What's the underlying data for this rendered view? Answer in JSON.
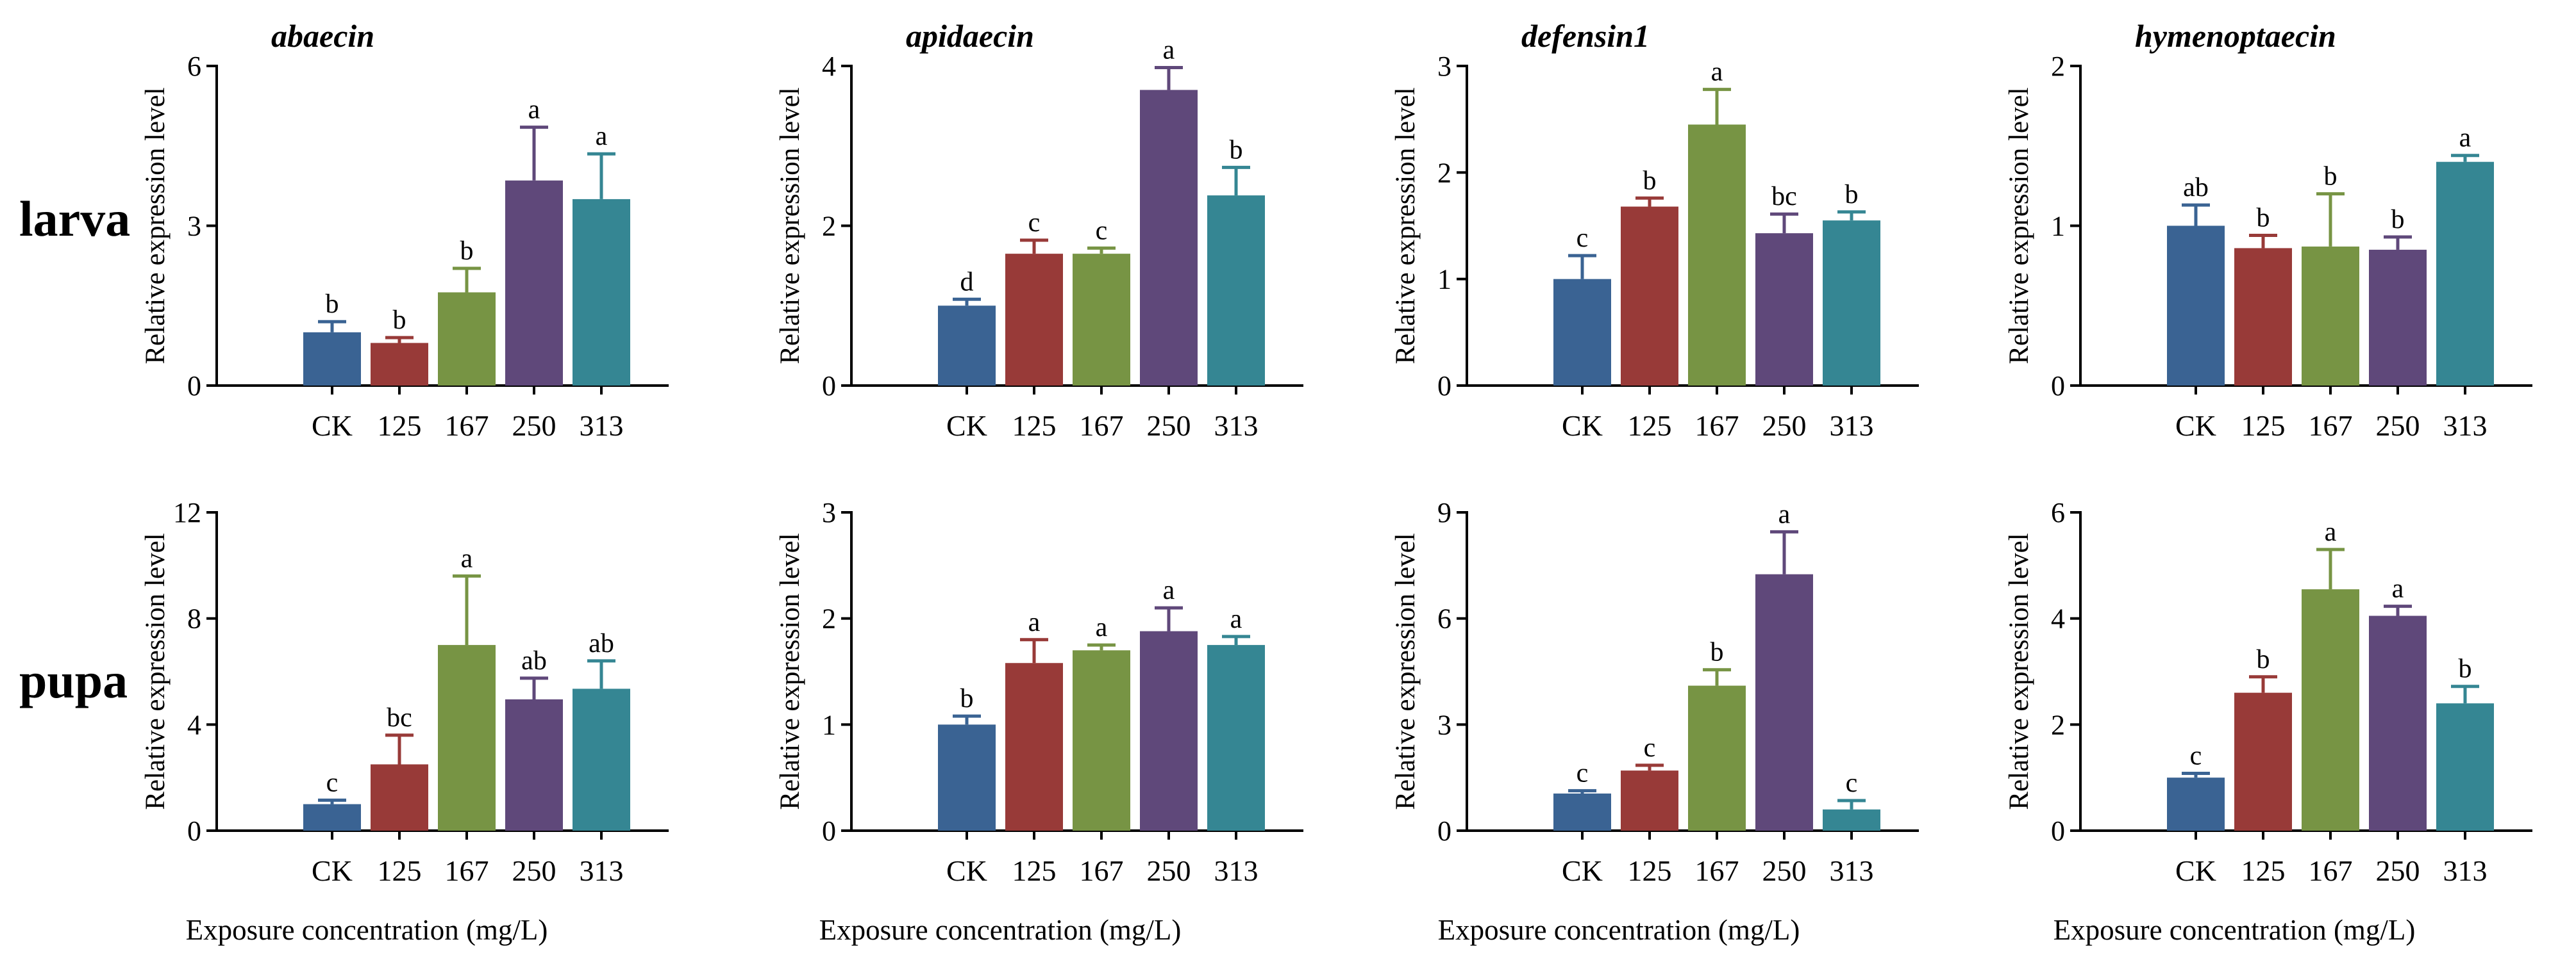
{
  "row_labels": [
    "larva",
    "pupa"
  ],
  "x_axis_label": "Exposure concentration (mg/L)",
  "chart_data": [
    {
      "type": "bar",
      "row": 0,
      "col": 0,
      "title": "abaecin",
      "ylabel": "Relative expression level",
      "ylim": [
        0,
        6
      ],
      "yticks": [
        0,
        3,
        6
      ],
      "categories": [
        "CK",
        "125",
        "167",
        "250",
        "313"
      ],
      "values": [
        1.0,
        0.8,
        1.75,
        3.85,
        3.5
      ],
      "errors": [
        0.2,
        0.1,
        0.45,
        1.0,
        0.85
      ],
      "labels": [
        "b",
        "b",
        "b",
        "a",
        "a"
      ],
      "colors": [
        "#3a6393",
        "#983a38",
        "#779444",
        "#5f487a",
        "#358693"
      ]
    },
    {
      "type": "bar",
      "row": 0,
      "col": 1,
      "title": "apidaecin",
      "ylabel": "Relative expression level",
      "ylim": [
        0,
        4
      ],
      "yticks": [
        0,
        2,
        4
      ],
      "categories": [
        "CK",
        "125",
        "167",
        "250",
        "313"
      ],
      "values": [
        1.0,
        1.65,
        1.65,
        3.7,
        2.38
      ],
      "errors": [
        0.08,
        0.17,
        0.07,
        0.28,
        0.35
      ],
      "labels": [
        "d",
        "c",
        "c",
        "a",
        "b"
      ],
      "colors": [
        "#3a6393",
        "#983a38",
        "#779444",
        "#5f487a",
        "#358693"
      ]
    },
    {
      "type": "bar",
      "row": 0,
      "col": 2,
      "title": "defensin1",
      "ylabel": "Relative expression level",
      "ylim": [
        0,
        3
      ],
      "yticks": [
        0,
        1,
        2,
        3
      ],
      "categories": [
        "CK",
        "125",
        "167",
        "250",
        "313"
      ],
      "values": [
        1.0,
        1.68,
        2.45,
        1.43,
        1.55
      ],
      "errors": [
        0.22,
        0.08,
        0.33,
        0.18,
        0.08
      ],
      "labels": [
        "c",
        "b",
        "a",
        "bc",
        "b"
      ],
      "colors": [
        "#3a6393",
        "#983a38",
        "#779444",
        "#5f487a",
        "#358693"
      ]
    },
    {
      "type": "bar",
      "row": 0,
      "col": 3,
      "title": "hymenoptaecin",
      "ylabel": "Relative expression level",
      "ylim": [
        0,
        2
      ],
      "yticks": [
        0,
        1,
        2
      ],
      "categories": [
        "CK",
        "125",
        "167",
        "250",
        "313"
      ],
      "values": [
        1.0,
        0.86,
        0.87,
        0.85,
        1.4
      ],
      "errors": [
        0.13,
        0.08,
        0.33,
        0.08,
        0.04
      ],
      "labels": [
        "ab",
        "b",
        "b",
        "b",
        "a"
      ],
      "colors": [
        "#3a6393",
        "#983a38",
        "#779444",
        "#5f487a",
        "#358693"
      ]
    },
    {
      "type": "bar",
      "row": 1,
      "col": 0,
      "title": "",
      "ylabel": "Relative expression level",
      "ylim": [
        0,
        12
      ],
      "yticks": [
        0,
        4,
        8,
        12
      ],
      "categories": [
        "CK",
        "125",
        "167",
        "250",
        "313"
      ],
      "values": [
        1.0,
        2.5,
        7.0,
        4.95,
        5.35
      ],
      "errors": [
        0.15,
        1.1,
        2.6,
        0.8,
        1.05
      ],
      "labels": [
        "c",
        "bc",
        "a",
        "ab",
        "ab"
      ],
      "colors": [
        "#3a6393",
        "#983a38",
        "#779444",
        "#5f487a",
        "#358693"
      ]
    },
    {
      "type": "bar",
      "row": 1,
      "col": 1,
      "title": "",
      "ylabel": "Relative expression level",
      "ylim": [
        0,
        3
      ],
      "yticks": [
        0,
        1,
        2,
        3
      ],
      "categories": [
        "CK",
        "125",
        "167",
        "250",
        "313"
      ],
      "values": [
        1.0,
        1.58,
        1.7,
        1.88,
        1.75
      ],
      "errors": [
        0.08,
        0.22,
        0.05,
        0.22,
        0.08
      ],
      "labels": [
        "b",
        "a",
        "a",
        "a",
        "a"
      ],
      "colors": [
        "#3a6393",
        "#983a38",
        "#779444",
        "#5f487a",
        "#358693"
      ]
    },
    {
      "type": "bar",
      "row": 1,
      "col": 2,
      "title": "",
      "ylabel": "Relative expression level",
      "ylim": [
        0,
        9
      ],
      "yticks": [
        0,
        3,
        6,
        9
      ],
      "categories": [
        "CK",
        "125",
        "167",
        "250",
        "313"
      ],
      "values": [
        1.05,
        1.7,
        4.1,
        7.25,
        0.6
      ],
      "errors": [
        0.08,
        0.15,
        0.45,
        1.2,
        0.25
      ],
      "labels": [
        "c",
        "c",
        "b",
        "a",
        "c"
      ],
      "colors": [
        "#3a6393",
        "#983a38",
        "#779444",
        "#5f487a",
        "#358693"
      ]
    },
    {
      "type": "bar",
      "row": 1,
      "col": 3,
      "title": "",
      "ylabel": "Relative expression level",
      "ylim": [
        0,
        6
      ],
      "yticks": [
        0,
        2,
        4,
        6
      ],
      "categories": [
        "CK",
        "125",
        "167",
        "250",
        "313"
      ],
      "values": [
        1.0,
        2.6,
        4.55,
        4.05,
        2.4
      ],
      "errors": [
        0.08,
        0.3,
        0.75,
        0.18,
        0.32
      ],
      "labels": [
        "c",
        "b",
        "a",
        "a",
        "b"
      ],
      "colors": [
        "#3a6393",
        "#983a38",
        "#779444",
        "#5f487a",
        "#358693"
      ]
    }
  ]
}
